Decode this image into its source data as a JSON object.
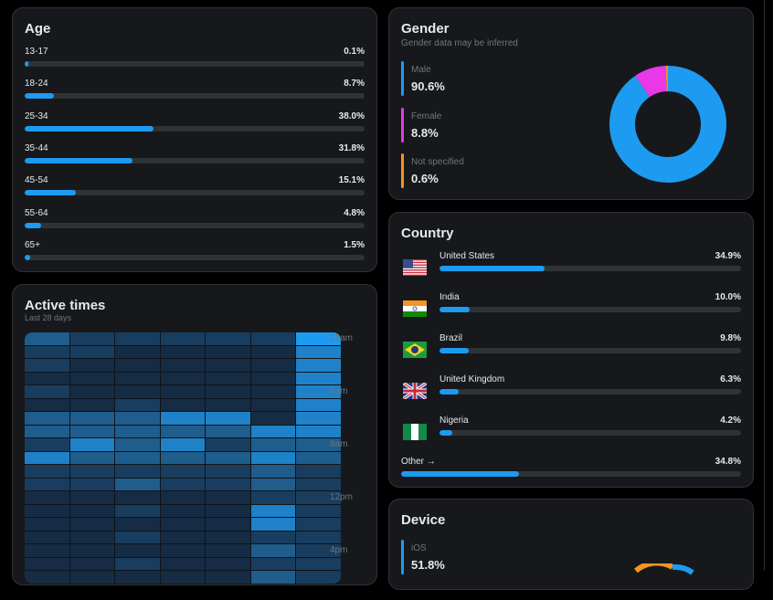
{
  "age": {
    "title": "Age",
    "rows": [
      {
        "label": "13-17",
        "value": "0.1%",
        "pct": 0.1
      },
      {
        "label": "18-24",
        "value": "8.7%",
        "pct": 8.7
      },
      {
        "label": "25-34",
        "value": "38.0%",
        "pct": 38.0
      },
      {
        "label": "35-44",
        "value": "31.8%",
        "pct": 31.8
      },
      {
        "label": "45-54",
        "value": "15.1%",
        "pct": 15.1
      },
      {
        "label": "55-64",
        "value": "4.8%",
        "pct": 4.8
      },
      {
        "label": "65+",
        "value": "1.5%",
        "pct": 1.5
      }
    ]
  },
  "gender": {
    "title": "Gender",
    "subtitle": "Gender data may be inferred",
    "items": [
      {
        "label": "Male",
        "value": "90.6%",
        "pct": 90.6,
        "color": "#1d9bf0"
      },
      {
        "label": "Female",
        "value": "8.8%",
        "pct": 8.8,
        "color": "#e838e8"
      },
      {
        "label": "Not specified",
        "value": "0.6%",
        "pct": 0.6,
        "color": "#f7931e"
      }
    ]
  },
  "active_times": {
    "title": "Active times",
    "subtitle": "Last 28 days",
    "time_labels": [
      "12am",
      "4am",
      "8am",
      "12pm",
      "4pm"
    ],
    "levels": [
      [
        3,
        2,
        2,
        2,
        2,
        2,
        5
      ],
      [
        2,
        2,
        1,
        1,
        1,
        1,
        4
      ],
      [
        2,
        1,
        1,
        1,
        1,
        1,
        4
      ],
      [
        1,
        1,
        1,
        1,
        1,
        1,
        4
      ],
      [
        2,
        1,
        1,
        1,
        1,
        1,
        4
      ],
      [
        1,
        1,
        2,
        1,
        1,
        1,
        4
      ],
      [
        3,
        3,
        3,
        4,
        4,
        1,
        4
      ],
      [
        3,
        3,
        3,
        3,
        3,
        4,
        4
      ],
      [
        2,
        4,
        3,
        4,
        2,
        3,
        3
      ],
      [
        4,
        3,
        3,
        3,
        3,
        4,
        3
      ],
      [
        2,
        2,
        2,
        2,
        2,
        3,
        2
      ],
      [
        2,
        2,
        3,
        2,
        2,
        3,
        2
      ],
      [
        1,
        1,
        1,
        1,
        1,
        2,
        2
      ],
      [
        1,
        1,
        2,
        1,
        1,
        4,
        2
      ],
      [
        1,
        1,
        1,
        1,
        1,
        4,
        2
      ],
      [
        1,
        1,
        2,
        1,
        1,
        2,
        2
      ],
      [
        1,
        1,
        1,
        1,
        1,
        3,
        2
      ],
      [
        1,
        1,
        2,
        1,
        1,
        2,
        2
      ],
      [
        1,
        1,
        1,
        1,
        1,
        3,
        2
      ]
    ]
  },
  "country": {
    "title": "Country",
    "rows": [
      {
        "name": "United States",
        "value": "34.9%",
        "pct": 34.9,
        "flag": "us-flag"
      },
      {
        "name": "India",
        "value": "10.0%",
        "pct": 10.0,
        "flag": "india-flag"
      },
      {
        "name": "Brazil",
        "value": "9.8%",
        "pct": 9.8,
        "flag": "brazil-flag"
      },
      {
        "name": "United Kingdom",
        "value": "6.3%",
        "pct": 6.3,
        "flag": "uk-flag"
      },
      {
        "name": "Nigeria",
        "value": "4.2%",
        "pct": 4.2,
        "flag": "nigeria-flag"
      }
    ],
    "other": {
      "label": "Other",
      "arrow": "→",
      "value": "34.8%",
      "pct": 34.8
    }
  },
  "device": {
    "title": "Device",
    "items": [
      {
        "label": "iOS",
        "value": "51.8%",
        "color": "#1d9bf0"
      }
    ]
  }
}
